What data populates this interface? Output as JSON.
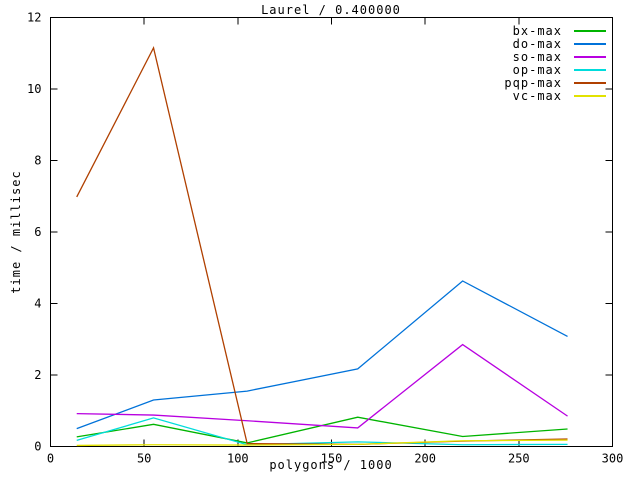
{
  "chart_data": {
    "type": "line",
    "title": "Laurel / 0.400000",
    "xlabel": "polygons / 1000",
    "ylabel": "time / millisec",
    "xlim": [
      0,
      300
    ],
    "ylim": [
      0,
      12
    ],
    "xticks": [
      0,
      50,
      100,
      150,
      200,
      250,
      300
    ],
    "yticks": [
      0,
      2,
      4,
      6,
      8,
      10,
      12
    ],
    "grid": false,
    "legend_position": "top-right-inside",
    "background_color": "#ffffff",
    "axis_color": "#000000",
    "x": [
      14,
      55,
      105,
      164,
      220,
      276
    ],
    "series": [
      {
        "name": "bx-max",
        "color": "#00b400",
        "values": [
          0.27,
          0.62,
          0.1,
          0.82,
          0.28,
          0.49
        ]
      },
      {
        "name": "do-max",
        "color": "#0072d9",
        "values": [
          0.5,
          1.3,
          1.55,
          2.17,
          4.63,
          3.08
        ]
      },
      {
        "name": "so-max",
        "color": "#b800e0",
        "values": [
          0.92,
          0.88,
          0.72,
          0.52,
          2.85,
          0.85
        ]
      },
      {
        "name": "op-max",
        "color": "#00dcdc",
        "values": [
          0.17,
          0.8,
          0.05,
          0.13,
          0.05,
          0.06
        ]
      },
      {
        "name": "pqp-max",
        "color": "#b04000",
        "values": [
          6.98,
          11.15,
          0.08,
          0.06,
          0.15,
          0.21
        ]
      },
      {
        "name": "vc-max",
        "color": "#e2e200",
        "values": [
          0.03,
          0.05,
          0.04,
          0.06,
          0.16,
          0.18
        ]
      }
    ]
  }
}
